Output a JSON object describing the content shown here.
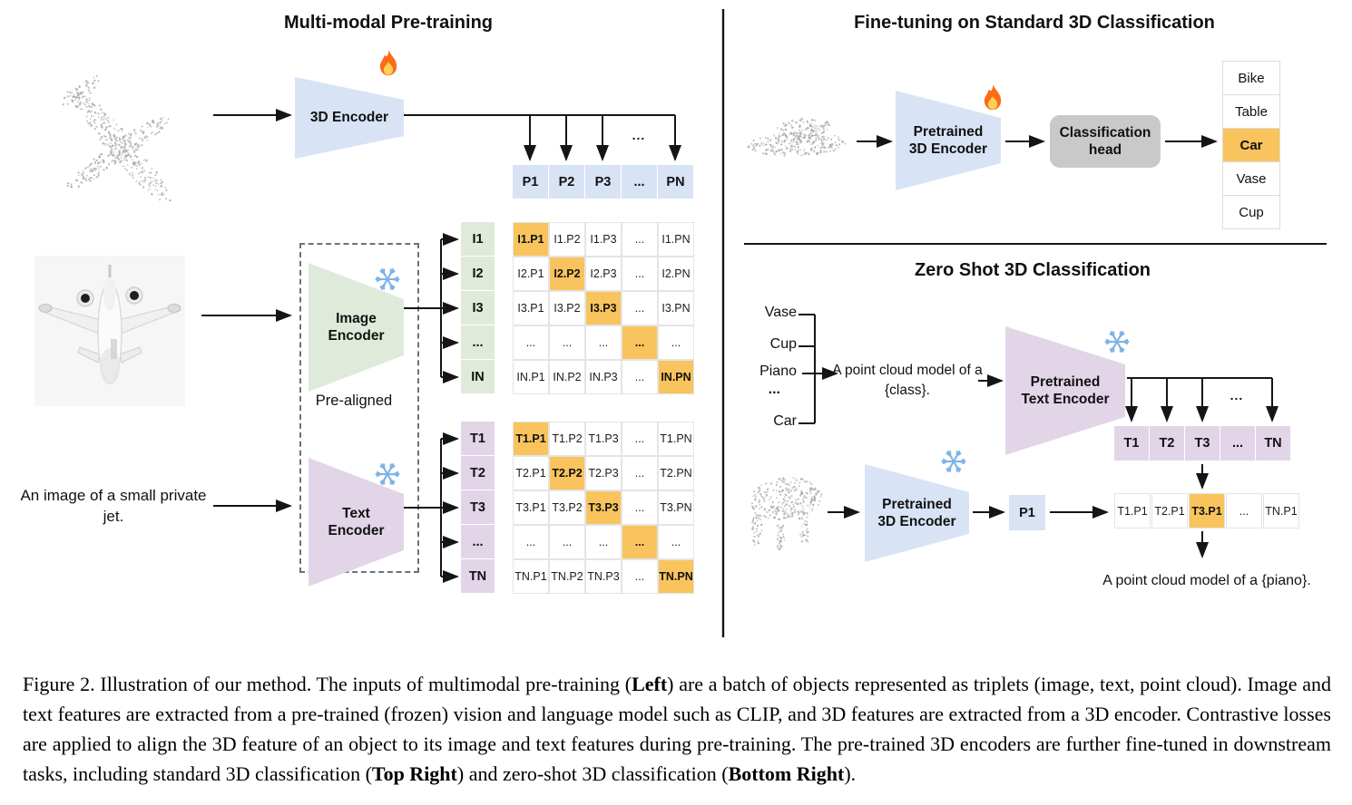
{
  "colors": {
    "blue": "#D8E3F6",
    "green": "#DFEADB",
    "purple": "#E2D5E8",
    "orange": "#F9C45D",
    "head": "#C9C9C9",
    "snowflake": "#7FB3E6",
    "fire_outer": "#FA6C16",
    "fire_inner": "#FFCE54",
    "point_cloud": "#a9a9a9"
  },
  "pretraining": {
    "title": "Multi-modal Pre-training",
    "encoder_3d_label": "3D Encoder",
    "image_encoder_label": "Image Encoder",
    "text_encoder_label": "Text Encoder",
    "prealigned_label": "Pre-aligned",
    "jet_caption": "An image of a small private jet.",
    "line_ellipsis": "...",
    "p_row": [
      "P1",
      "P2",
      "P3",
      "...",
      "PN"
    ],
    "i_col": [
      "I1",
      "I2",
      "I3",
      "...",
      "IN"
    ],
    "t_col": [
      "T1",
      "T2",
      "T3",
      "...",
      "TN"
    ],
    "i_matrix": [
      [
        "I1.P1",
        "I1.P2",
        "I1.P3",
        "...",
        "I1.PN"
      ],
      [
        "I2.P1",
        "I2.P2",
        "I2.P3",
        "...",
        "I2.PN"
      ],
      [
        "I3.P1",
        "I3.P2",
        "I3.P3",
        "...",
        "I3.PN"
      ],
      [
        "...",
        "...",
        "...",
        "...",
        "..."
      ],
      [
        "IN.P1",
        "IN.P2",
        "IN.P3",
        "...",
        "IN.PN"
      ]
    ],
    "t_matrix": [
      [
        "T1.P1",
        "T1.P2",
        "T1.P3",
        "...",
        "T1.PN"
      ],
      [
        "T2.P1",
        "T2.P2",
        "T2.P3",
        "...",
        "T2.PN"
      ],
      [
        "T3.P1",
        "T3.P2",
        "T3.P3",
        "...",
        "T3.PN"
      ],
      [
        "...",
        "...",
        "...",
        "...",
        "..."
      ],
      [
        "TN.P1",
        "TN.P2",
        "TN.P3",
        "...",
        "TN.PN"
      ]
    ]
  },
  "finetune": {
    "title": "Fine-tuning on Standard 3D Classification",
    "encoder_label": "Pretrained 3D Encoder",
    "head_label": "Classification head",
    "classes": [
      "Bike",
      "Table",
      "Car",
      "Vase",
      "Cup"
    ],
    "highlight_index": 2
  },
  "zeroshot": {
    "title": "Zero Shot 3D Classification",
    "class_list": [
      "Vase",
      "Cup",
      "Piano",
      "...",
      "Car"
    ],
    "prompt": "A point cloud model of a {class}.",
    "text_encoder_label": "Pretrained Text Encoder",
    "encoder_3d_label": "Pretrained 3D Encoder",
    "p_cell": "P1",
    "t_row": [
      "T1",
      "T2",
      "T3",
      "...",
      "TN"
    ],
    "sim_row": [
      "T1.P1",
      "T2.P1",
      "T3.P1",
      "...",
      "TN.P1"
    ],
    "sim_highlight_index": 2,
    "line_ellipsis": "...",
    "result_text": "A point cloud model of a {piano}."
  },
  "icons": {
    "trainable": "fire-icon",
    "frozen": "snowflake-icon"
  },
  "caption": {
    "segments": [
      {
        "text": "Figure 2. Illustration of our method. The inputs of multimodal pre-training (",
        "bold": false
      },
      {
        "text": "Left",
        "bold": true
      },
      {
        "text": ") are a batch of objects represented as triplets (image, text, point cloud). Image and text features are extracted from a pre-trained (frozen) vision and language model such as CLIP, and 3D features are extracted from a 3D encoder. Contrastive losses are applied to align the 3D feature of an object to its image and text features during pre-training. The pre-trained 3D encoders are further fine-tuned in downstream tasks, including standard 3D classification (",
        "bold": false
      },
      {
        "text": "Top Right",
        "bold": true
      },
      {
        "text": ") and zero-shot 3D classification (",
        "bold": false
      },
      {
        "text": "Bottom Right",
        "bold": true
      },
      {
        "text": ").",
        "bold": false
      }
    ]
  }
}
